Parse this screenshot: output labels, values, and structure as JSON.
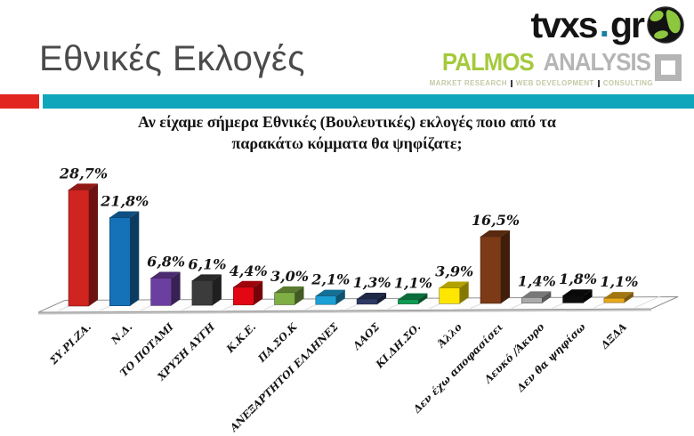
{
  "header": {
    "title": "Εθνικές Εκλογές"
  },
  "logos": {
    "tvxs": {
      "name_left": "tvxs",
      "dot": ".",
      "name_right": "gr",
      "dot_color": "#1a7fa0"
    },
    "palmos": {
      "primary": "PALMOS",
      "secondary": "ANALYSIS",
      "primary_color": "#a5c93c",
      "secondary_color": "#b5b5b5",
      "tagline": [
        "MARKET RESEARCH",
        "WEB DEVELOPMENT",
        "CONSULTING"
      ]
    }
  },
  "divider": {
    "red": "#e3251f",
    "teal": "#0fa6bb"
  },
  "chart_data": {
    "type": "bar",
    "style": "3d-column",
    "title": "Αν είχαμε σήμερα Εθνικές (Βουλευτικές) εκλογές ποιο από τα παρακάτω κόμματα θα ψηφίζατε;",
    "title_lines": [
      "Αν είχαμε σήμερα Εθνικές (Βουλευτικές) εκλογές ποιο από τα",
      "παρακάτω κόμματα θα ψηφίζατε;"
    ],
    "categories": [
      "ΣΥ.ΡΙ.ΖΑ.",
      "Ν.Δ.",
      "ΤΟ ΠΟΤΑΜΙ",
      "ΧΡΥΣΗ ΑΥΓΗ",
      "Κ.Κ.Ε.",
      "ΠΑ.ΣΟ.Κ",
      "ΑΝΕΞΑΡΤΗΤΟΙ ΕΛΛΗΝΕΣ",
      "ΛΑΟΣ",
      "ΚΙ.ΔΗ.ΣΟ.",
      "Άλλο",
      "Δεν έχω αποφασίσει",
      "Λευκό /Άκυρο",
      "Δεν θα ψηφίσω",
      "ΔΞΔΑ"
    ],
    "values": [
      28.7,
      21.8,
      6.8,
      6.1,
      4.4,
      3.0,
      2.1,
      1.3,
      1.1,
      3.9,
      16.5,
      1.4,
      1.8,
      1.1
    ],
    "value_labels": [
      "28,7%",
      "21,8%",
      "6,8%",
      "6,1%",
      "4,4%",
      "3,0%",
      "2,1%",
      "1,3%",
      "1,1%",
      "3,9%",
      "16,5%",
      "1,4%",
      "1,8%",
      "1,1%"
    ],
    "colors": [
      "#cf2420",
      "#1572b8",
      "#6b3fa0",
      "#3b3b3b",
      "#e30613",
      "#7fae45",
      "#1c9fd4",
      "#2c3a64",
      "#0f9b53",
      "#ffe600",
      "#7c3a16",
      "#ababab",
      "#0d0d0d",
      "#e8a91a"
    ],
    "xlabel": "",
    "ylabel": "",
    "ylim": [
      0,
      30
    ],
    "grid": false,
    "legend": "none"
  }
}
